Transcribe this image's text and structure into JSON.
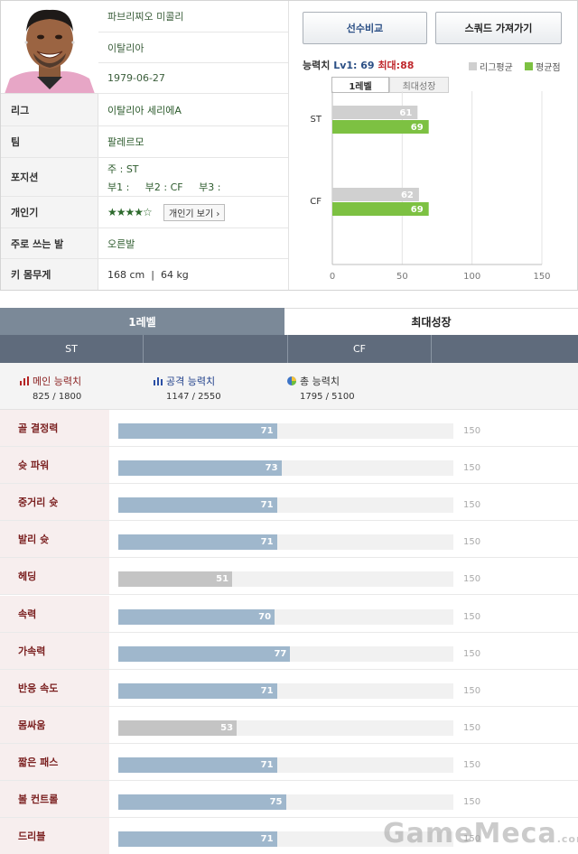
{
  "profile": {
    "name": "파브리찌오 미콜리",
    "nationality": "이탈리아",
    "birthdate": "1979-06-27",
    "rows": [
      {
        "label": "리그",
        "value": "이탈리아 세리에A"
      },
      {
        "label": "팀",
        "value": "팔레르모"
      },
      {
        "label": "포지션",
        "value_main": "주 : ST",
        "value_sub": "부1 :     부2 : CF     부3 :"
      },
      {
        "label": "개인기",
        "stars": "★★★★☆",
        "button": "개인기 보기 ›"
      },
      {
        "label": "주로 쓰는 발",
        "value": "오른발"
      },
      {
        "label": "키 몸무게",
        "value": "168 cm  |  64 kg"
      }
    ]
  },
  "actions": {
    "compare": "선수비교",
    "squad": "스쿼드 가져가기"
  },
  "ability": {
    "label": "능력치",
    "lv": "Lv1: 69",
    "max": "최대:88",
    "legend_league": "리그평균",
    "legend_avg": "평균점",
    "tab1": "1레벨",
    "tab2": "최대성장",
    "colors": {
      "league": "#d0d0d0",
      "avg": "#7dc142"
    }
  },
  "chart_data": {
    "type": "bar",
    "categories": [
      "ST",
      "CF"
    ],
    "series": [
      {
        "name": "리그평균",
        "values": [
          61,
          62
        ]
      },
      {
        "name": "평균점",
        "values": [
          69,
          69
        ]
      }
    ],
    "xlim": [
      0,
      150
    ],
    "xticks": [
      0,
      50,
      100,
      150
    ]
  },
  "tabs": {
    "level1": "1레벨",
    "max": "최대성장"
  },
  "positions": [
    "ST",
    "CF"
  ],
  "summary": {
    "main": {
      "title": "메인 능력치",
      "value": "825 / 1800"
    },
    "attack": {
      "title": "공격 능력치",
      "value": "1147 / 2550"
    },
    "total": {
      "title": "총 능력치",
      "value": "1795 / 5100"
    }
  },
  "attributes": [
    {
      "label": "골 결정력",
      "value": 71,
      "max": "150",
      "low": false
    },
    {
      "label": "슛 파워",
      "value": 73,
      "max": "150",
      "low": false
    },
    {
      "label": "중거리 슛",
      "value": 71,
      "max": "150",
      "low": false
    },
    {
      "label": "발리 슛",
      "value": 71,
      "max": "150",
      "low": false
    },
    {
      "label": "헤딩",
      "value": 51,
      "max": "150",
      "low": true
    },
    {
      "label": "속력",
      "value": 70,
      "max": "150",
      "low": false
    },
    {
      "label": "가속력",
      "value": 77,
      "max": "150",
      "low": false
    },
    {
      "label": "반응 속도",
      "value": 71,
      "max": "150",
      "low": false
    },
    {
      "label": "몸싸움",
      "value": 53,
      "max": "150",
      "low": true
    },
    {
      "label": "짧은 패스",
      "value": 71,
      "max": "150",
      "low": false
    },
    {
      "label": "볼 컨트롤",
      "value": 75,
      "max": "150",
      "low": false
    },
    {
      "label": "드리블",
      "value": 71,
      "max": "150",
      "low": false
    }
  ],
  "watermark": {
    "main": "GameMeca",
    "suffix": ".com"
  }
}
